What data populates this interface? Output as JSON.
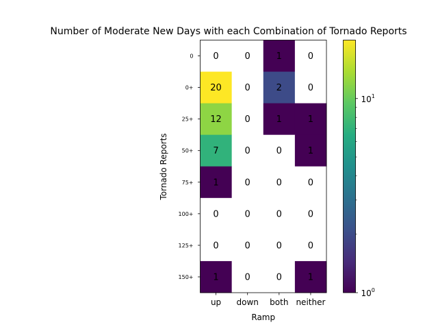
{
  "chart_data": {
    "type": "heatmap",
    "title": "Number of Moderate New Days with each Combination of Tornado Reports",
    "xlabel": "Ramp",
    "ylabel": "Tornado Reports",
    "x_categories": [
      "up",
      "down",
      "both",
      "neither"
    ],
    "y_categories": [
      "0",
      "0+",
      "25+",
      "50+",
      "75+",
      "100+",
      "125+",
      "150+"
    ],
    "values": [
      [
        0,
        0,
        1,
        0
      ],
      [
        20,
        0,
        2,
        0
      ],
      [
        12,
        0,
        1,
        1
      ],
      [
        7,
        0,
        0,
        1
      ],
      [
        1,
        0,
        0,
        0
      ],
      [
        0,
        0,
        0,
        0
      ],
      [
        0,
        0,
        0,
        0
      ],
      [
        1,
        0,
        0,
        1
      ]
    ],
    "colormap": "viridis",
    "color_scale": "log",
    "zero_cells_color": "#ffffff",
    "colorbar": {
      "min": 1,
      "max": 20,
      "tick_values": [
        1,
        10
      ],
      "tick_labels": [
        "10^0",
        "10^1"
      ]
    }
  }
}
